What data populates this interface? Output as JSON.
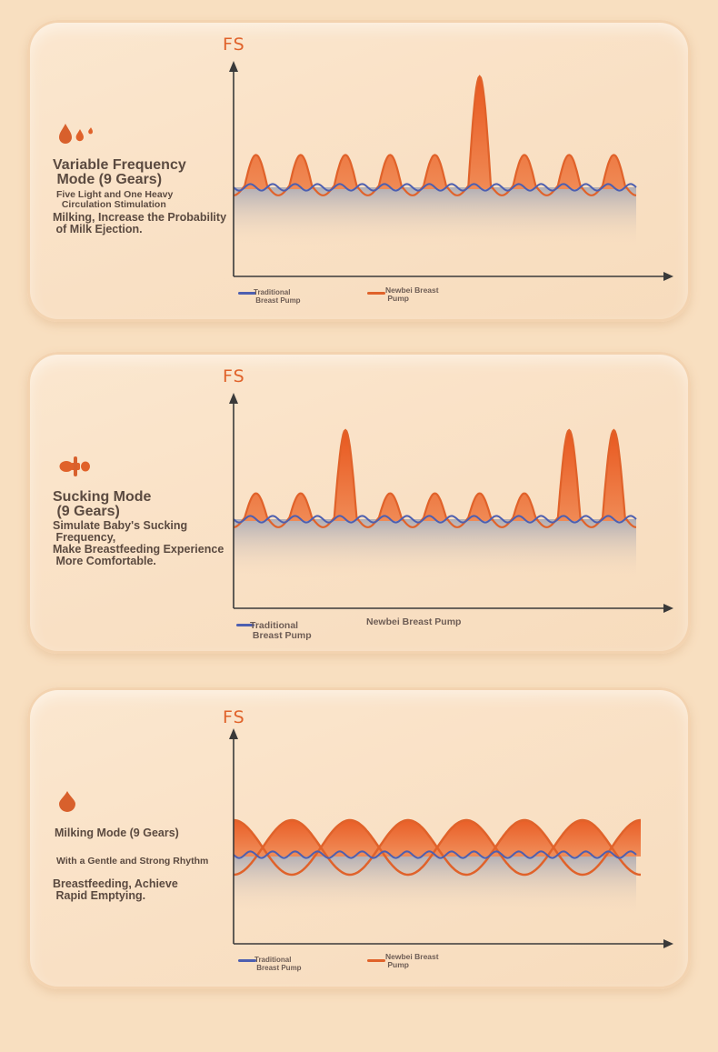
{
  "axis_label": "FS",
  "colors": {
    "newbei": "#e0622a",
    "traditional": "#4d5fb0",
    "text": "#5b4a40",
    "background": "#f8dfc0"
  },
  "panels": [
    {
      "icon": "droplets-icon",
      "title": "Variable Frequency\n Mode (9 Gears)",
      "desc_small": "Five Light and One Heavy\n  Circulation Stimulation",
      "desc_main": "Milking, Increase the Probability\n of Milk Ejection.",
      "legend_traditional": "Traditional\n Breast Pump",
      "legend_newbei": "Newbei Breast\n Pump",
      "chart_data": {
        "type": "line",
        "xlabel": "",
        "ylabel": "FS",
        "series": [
          {
            "name": "Traditional Breast Pump",
            "pattern": "small-ripple",
            "cycles": 18,
            "amplitude": 0.03
          },
          {
            "name": "Newbei Breast Pump",
            "pattern": "five-light-one-heavy",
            "peaks": [
              0.28,
              0.28,
              0.28,
              0.28,
              0.28,
              1.0,
              0.28,
              0.28,
              0.28
            ]
          }
        ]
      }
    },
    {
      "icon": "pacifier-icon",
      "title": "Sucking Mode\n (9 Gears)",
      "desc_small": "",
      "desc_main": "Simulate Baby's Sucking\n Frequency,\nMake Breastfeeding Experience\n More Comfortable.",
      "legend_traditional": "Traditional\n Breast Pump",
      "legend_newbei": "Newbei Breast Pump",
      "chart_data": {
        "type": "line",
        "xlabel": "",
        "ylabel": "FS",
        "series": [
          {
            "name": "Traditional Breast Pump",
            "pattern": "small-ripple",
            "cycles": 18,
            "amplitude": 0.03
          },
          {
            "name": "Newbei Breast Pump",
            "pattern": "sucking",
            "peaks": [
              0.22,
              0.22,
              0.8,
              0.22,
              0.22,
              0.22,
              0.22,
              0.8,
              0.8
            ]
          }
        ]
      }
    },
    {
      "icon": "drop-icon",
      "title": "Milking Mode (9 Gears)",
      "desc_small": "With a Gentle and Strong Rhythm",
      "desc_main": "Breastfeeding, Achieve\n Rapid Emptying.",
      "legend_traditional": "Traditional\n Breast Pump",
      "legend_newbei": "Newbei Breast\n Pump",
      "chart_data": {
        "type": "line",
        "xlabel": "",
        "ylabel": "FS",
        "series": [
          {
            "name": "Traditional Breast Pump",
            "pattern": "small-ripple",
            "cycles": 18,
            "amplitude": 0.03
          },
          {
            "name": "Newbei Breast Pump",
            "pattern": "dual-wave",
            "cycles": 3.5,
            "amplitude": 0.25
          }
        ]
      }
    }
  ]
}
